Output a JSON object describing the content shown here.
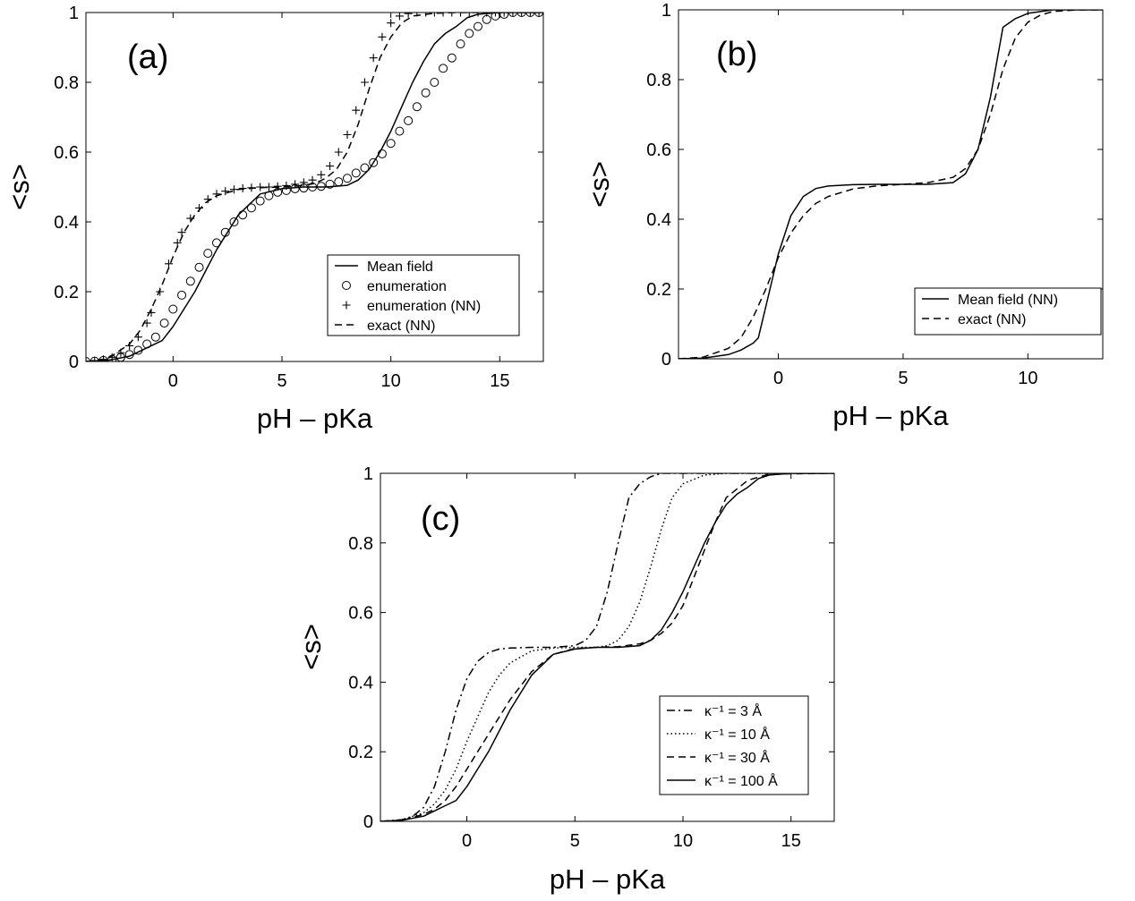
{
  "chart_data": [
    {
      "type": "line",
      "panel_label": "(a)",
      "xlabel": "pH – pKa",
      "ylabel": "<s>",
      "xlim": [
        -4,
        17
      ],
      "ylim": [
        0,
        1
      ],
      "xticks": [
        0,
        5,
        10,
        15
      ],
      "xtick_labels": [
        "0",
        "5",
        "10",
        "15"
      ],
      "yticks": [
        0,
        0.2,
        0.4,
        0.6,
        0.8,
        1
      ],
      "ytick_labels": [
        "0",
        "0.2",
        "0.4",
        "0.6",
        "0.8",
        "1"
      ],
      "grid": false,
      "legend_position": "lower-right",
      "series": [
        {
          "name": "Mean field",
          "style": "solid",
          "x": [
            -4,
            -3,
            -2,
            -1.5,
            -1,
            -0.5,
            0,
            0.5,
            1,
            1.5,
            2,
            3,
            4,
            5,
            6,
            7,
            8,
            8.5,
            9,
            9.5,
            10,
            10.5,
            11,
            11.5,
            12,
            12.5,
            13,
            13.5,
            14,
            15,
            16,
            17
          ],
          "y": [
            0,
            0.003,
            0.015,
            0.03,
            0.045,
            0.06,
            0.1,
            0.15,
            0.2,
            0.26,
            0.32,
            0.42,
            0.48,
            0.495,
            0.5,
            0.5,
            0.505,
            0.52,
            0.55,
            0.6,
            0.66,
            0.73,
            0.8,
            0.86,
            0.91,
            0.94,
            0.96,
            0.985,
            0.995,
            1,
            1,
            1
          ]
        },
        {
          "name": "enumeration",
          "style": "marker-circle",
          "x": [
            -4,
            -3.6,
            -3.2,
            -2.8,
            -2.4,
            -2,
            -1.6,
            -1.2,
            -0.8,
            -0.4,
            0,
            0.4,
            0.8,
            1.2,
            1.6,
            2,
            2.4,
            2.8,
            3.2,
            3.6,
            4,
            4.4,
            4.8,
            5.2,
            5.6,
            6,
            6.4,
            6.8,
            7.2,
            7.6,
            8,
            8.4,
            8.8,
            9.2,
            9.6,
            10,
            10.4,
            10.8,
            11.2,
            11.6,
            12,
            12.4,
            12.8,
            13.2,
            13.6,
            14,
            14.4,
            14.8,
            15.2,
            15.6,
            16,
            16.4,
            16.8
          ],
          "y": [
            0,
            0.001,
            0.003,
            0.006,
            0.012,
            0.02,
            0.032,
            0.05,
            0.07,
            0.11,
            0.15,
            0.19,
            0.23,
            0.27,
            0.31,
            0.34,
            0.37,
            0.4,
            0.42,
            0.44,
            0.46,
            0.475,
            0.485,
            0.49,
            0.495,
            0.497,
            0.5,
            0.502,
            0.508,
            0.515,
            0.525,
            0.54,
            0.555,
            0.57,
            0.595,
            0.625,
            0.66,
            0.69,
            0.73,
            0.77,
            0.8,
            0.84,
            0.87,
            0.91,
            0.94,
            0.96,
            0.98,
            0.99,
            0.995,
            1,
            1,
            1,
            1
          ]
        },
        {
          "name": "enumeration (NN)",
          "style": "marker-plus",
          "x": [
            -4,
            -3.6,
            -3.2,
            -2.8,
            -2.4,
            -2,
            -1.6,
            -1.2,
            -1,
            -0.6,
            -0.2,
            0.2,
            0.4,
            0.8,
            1.2,
            1.6,
            2,
            2.4,
            2.8,
            3.2,
            3.6,
            4,
            4.4,
            4.8,
            5.2,
            5.6,
            6,
            6.4,
            6.8,
            7.2,
            7.6,
            8,
            8.4,
            8.8,
            9.2,
            9.6,
            10,
            10.4,
            10.8,
            11.2,
            11.6,
            12,
            12.4,
            12.8,
            13.2,
            13.6,
            14,
            14.4,
            14.8,
            15.2,
            15.6,
            16,
            16.4,
            16.8
          ],
          "y": [
            0,
            0.002,
            0.006,
            0.012,
            0.025,
            0.045,
            0.07,
            0.11,
            0.14,
            0.2,
            0.28,
            0.34,
            0.37,
            0.41,
            0.44,
            0.465,
            0.48,
            0.488,
            0.493,
            0.496,
            0.498,
            0.5,
            0.5,
            0.502,
            0.504,
            0.508,
            0.513,
            0.52,
            0.535,
            0.56,
            0.6,
            0.65,
            0.72,
            0.8,
            0.87,
            0.93,
            0.97,
            0.99,
            0.997,
            1,
            1,
            1,
            1,
            1,
            1,
            1,
            1,
            1,
            1,
            1,
            1,
            1,
            1,
            1
          ]
        },
        {
          "name": "exact (NN)",
          "style": "dashed",
          "x": [
            -4,
            -3,
            -2,
            -1.5,
            -1,
            -0.5,
            0,
            0.5,
            1,
            1.5,
            2,
            3,
            4,
            5,
            6,
            6.5,
            7,
            7.5,
            8,
            8.5,
            9,
            9.5,
            10,
            10.5,
            11,
            12,
            13,
            14,
            15,
            16,
            17
          ],
          "y": [
            0,
            0.008,
            0.05,
            0.09,
            0.15,
            0.22,
            0.3,
            0.37,
            0.42,
            0.455,
            0.475,
            0.493,
            0.498,
            0.5,
            0.505,
            0.51,
            0.525,
            0.55,
            0.6,
            0.68,
            0.78,
            0.87,
            0.93,
            0.97,
            0.99,
            0.998,
            1,
            1,
            1,
            1,
            1
          ]
        }
      ]
    },
    {
      "type": "line",
      "panel_label": "(b)",
      "xlabel": "pH – pKa",
      "ylabel": "<s>",
      "xlim": [
        -4,
        13
      ],
      "ylim": [
        0,
        1
      ],
      "xticks": [
        0,
        5,
        10
      ],
      "xtick_labels": [
        "0",
        "5",
        "10"
      ],
      "yticks": [
        0,
        0.2,
        0.4,
        0.6,
        0.8,
        1
      ],
      "ytick_labels": [
        "0",
        "0.2",
        "0.4",
        "0.6",
        "0.8",
        "1"
      ],
      "grid": false,
      "legend_position": "lower-right",
      "series": [
        {
          "name": "Mean field (NN)",
          "style": "solid",
          "x": [
            -4,
            -3,
            -2,
            -1.5,
            -1,
            -0.8,
            -0.5,
            0,
            0.5,
            1,
            1.5,
            2,
            3,
            4,
            5,
            6,
            7,
            7.5,
            8,
            8.5,
            9,
            9.5,
            10,
            11,
            12,
            13
          ],
          "y": [
            0,
            0.002,
            0.012,
            0.025,
            0.045,
            0.06,
            0.15,
            0.3,
            0.41,
            0.465,
            0.488,
            0.495,
            0.499,
            0.5,
            0.5,
            0.5,
            0.505,
            0.53,
            0.6,
            0.75,
            0.95,
            0.975,
            0.99,
            1,
            1,
            1
          ]
        },
        {
          "name": "exact (NN)",
          "style": "dashed",
          "x": [
            -4,
            -3,
            -2,
            -1.5,
            -1,
            -0.5,
            0,
            0.5,
            1,
            1.5,
            2,
            3,
            4,
            5,
            6,
            7,
            7.5,
            8,
            8.5,
            9,
            9.5,
            10,
            10.5,
            11,
            12,
            13
          ],
          "y": [
            0,
            0.005,
            0.03,
            0.06,
            0.12,
            0.2,
            0.29,
            0.36,
            0.41,
            0.445,
            0.465,
            0.487,
            0.496,
            0.5,
            0.505,
            0.52,
            0.545,
            0.6,
            0.7,
            0.83,
            0.92,
            0.965,
            0.985,
            0.995,
            1,
            1
          ]
        }
      ]
    },
    {
      "type": "line",
      "panel_label": "(c)",
      "xlabel": "pH – pKa",
      "ylabel": "<s>",
      "xlim": [
        -4,
        17
      ],
      "ylim": [
        0,
        1
      ],
      "xticks": [
        0,
        5,
        10,
        15
      ],
      "xtick_labels": [
        "0",
        "5",
        "10",
        "15"
      ],
      "yticks": [
        0,
        0.2,
        0.4,
        0.6,
        0.8,
        1
      ],
      "ytick_labels": [
        "0",
        "0.2",
        "0.4",
        "0.6",
        "0.8",
        "1"
      ],
      "grid": false,
      "legend_position": "lower-right",
      "series": [
        {
          "name": "κ⁻¹ = 3 Å",
          "style": "dashdot",
          "x": [
            -4,
            -3,
            -2.5,
            -2,
            -1.5,
            -1,
            -0.5,
            0,
            0.5,
            1,
            1.5,
            2,
            3,
            4,
            5,
            5.5,
            6,
            6.5,
            7,
            7.5,
            8,
            8.5,
            9,
            10,
            11,
            17
          ],
          "y": [
            0,
            0.005,
            0.015,
            0.04,
            0.1,
            0.2,
            0.32,
            0.41,
            0.46,
            0.485,
            0.495,
            0.498,
            0.5,
            0.5,
            0.505,
            0.52,
            0.56,
            0.66,
            0.8,
            0.93,
            0.97,
            0.99,
            1,
            1,
            1,
            1
          ]
        },
        {
          "name": "κ⁻¹ = 10 Å",
          "style": "dotted",
          "x": [
            -4,
            -3,
            -2,
            -1.5,
            -1,
            -0.5,
            0,
            0.5,
            1,
            1.5,
            2,
            3,
            4,
            5,
            6,
            6.5,
            7,
            7.5,
            8,
            8.5,
            9,
            9.5,
            10,
            11,
            12,
            17
          ],
          "y": [
            0,
            0.004,
            0.025,
            0.05,
            0.09,
            0.15,
            0.23,
            0.3,
            0.37,
            0.42,
            0.455,
            0.49,
            0.498,
            0.5,
            0.5,
            0.505,
            0.52,
            0.56,
            0.63,
            0.73,
            0.84,
            0.93,
            0.97,
            0.995,
            1,
            1
          ]
        },
        {
          "name": "κ⁻¹ = 30 Å",
          "style": "dashed",
          "x": [
            -4,
            -3,
            -2,
            -1.5,
            -1,
            -0.5,
            0,
            0.5,
            1,
            1.5,
            2,
            3,
            4,
            5,
            6,
            7,
            8,
            8.5,
            9,
            9.5,
            10,
            10.5,
            11,
            11.5,
            12,
            13,
            14,
            17
          ],
          "y": [
            0,
            0.003,
            0.02,
            0.035,
            0.06,
            0.1,
            0.15,
            0.2,
            0.25,
            0.3,
            0.35,
            0.43,
            0.48,
            0.497,
            0.5,
            0.502,
            0.51,
            0.52,
            0.54,
            0.57,
            0.62,
            0.7,
            0.78,
            0.86,
            0.93,
            0.98,
            0.998,
            1
          ]
        },
        {
          "name": "κ⁻¹ = 100 Å",
          "style": "solid",
          "x": [
            -4,
            -3,
            -2,
            -1.5,
            -1,
            -0.5,
            0,
            0.5,
            1,
            1.5,
            2,
            3,
            4,
            5,
            6,
            7,
            8,
            8.5,
            9,
            9.5,
            10,
            10.5,
            11,
            11.5,
            12,
            12.5,
            13,
            13.5,
            14,
            15,
            16,
            17
          ],
          "y": [
            0,
            0.003,
            0.015,
            0.03,
            0.045,
            0.06,
            0.1,
            0.15,
            0.2,
            0.26,
            0.32,
            0.42,
            0.48,
            0.495,
            0.5,
            0.5,
            0.505,
            0.52,
            0.55,
            0.6,
            0.66,
            0.73,
            0.8,
            0.86,
            0.91,
            0.94,
            0.96,
            0.985,
            0.995,
            1,
            1,
            1
          ]
        }
      ]
    }
  ]
}
